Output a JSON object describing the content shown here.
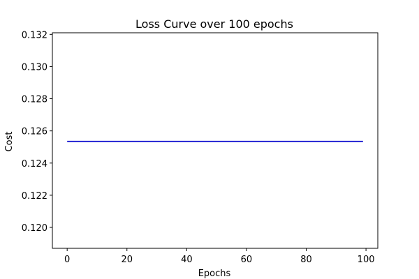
{
  "chart_data": {
    "type": "line",
    "title": "Loss Curve over 100 epochs",
    "xlabel": "Epochs",
    "ylabel": "Cost",
    "xlim": [
      -4.95,
      103.95
    ],
    "ylim": [
      0.1187,
      0.1321
    ],
    "x_ticks": [
      0,
      20,
      40,
      60,
      80,
      100
    ],
    "y_ticks": [
      0.12,
      0.122,
      0.124,
      0.126,
      0.128,
      0.13,
      0.132
    ],
    "x_tick_labels": [
      "0",
      "20",
      "40",
      "60",
      "80",
      "100"
    ],
    "y_tick_labels": [
      "0.120",
      "0.122",
      "0.124",
      "0.126",
      "0.128",
      "0.130",
      "0.132"
    ],
    "grid": false,
    "series": [
      {
        "color": "#0000cc",
        "x_range": [
          0,
          99
        ],
        "constant_value": 0.12535
      }
    ]
  }
}
